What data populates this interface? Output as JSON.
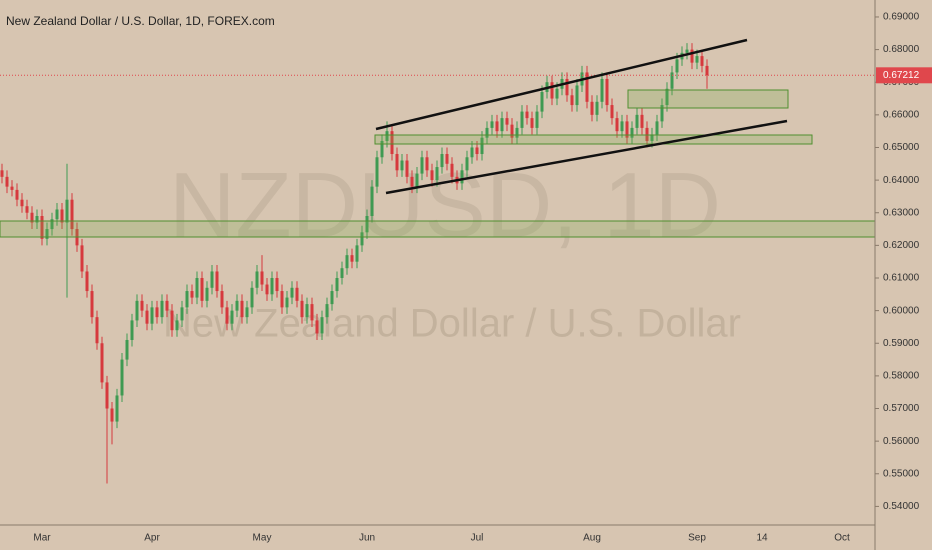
{
  "chart_data": {
    "type": "candlestick",
    "title": "New Zealand Dollar / U.S. Dollar, 1D, FOREX.com",
    "watermark": "NZDUSD, 1D",
    "watermark_subtitle": "New Zealand Dollar / U.S. Dollar",
    "last_price": 0.67212,
    "up_color": "#3f9a52",
    "down_color": "#d6393d",
    "background": "#d7c5b1",
    "last_price_color": "#e0474c",
    "ylim": [
      0.5343,
      0.6952
    ],
    "yticks": [
      {
        "value": 0.54,
        "label": "0.54000"
      },
      {
        "value": 0.55,
        "label": "0.55000"
      },
      {
        "value": 0.56,
        "label": "0.56000"
      },
      {
        "value": 0.57,
        "label": "0.57000"
      },
      {
        "value": 0.58,
        "label": "0.58000"
      },
      {
        "value": 0.59,
        "label": "0.59000"
      },
      {
        "value": 0.6,
        "label": "0.60000"
      },
      {
        "value": 0.61,
        "label": "0.61000"
      },
      {
        "value": 0.62,
        "label": "0.62000"
      },
      {
        "value": 0.63,
        "label": "0.63000"
      },
      {
        "value": 0.64,
        "label": "0.64000"
      },
      {
        "value": 0.65,
        "label": "0.65000"
      },
      {
        "value": 0.66,
        "label": "0.66000"
      },
      {
        "value": 0.67,
        "label": "0.67000"
      },
      {
        "value": 0.68,
        "label": "0.68000"
      },
      {
        "value": 0.69,
        "label": "0.69000"
      }
    ],
    "categories": [
      null,
      null,
      null,
      null,
      null,
      null,
      null,
      null,
      "Mar",
      null,
      null,
      null,
      null,
      null,
      null,
      null,
      null,
      null,
      null,
      null,
      null,
      null,
      null,
      null,
      null,
      null,
      null,
      null,
      null,
      null,
      "Apr",
      null,
      null,
      null,
      null,
      null,
      null,
      null,
      null,
      null,
      null,
      null,
      null,
      null,
      null,
      null,
      null,
      null,
      null,
      null,
      null,
      null,
      "May",
      null,
      null,
      null,
      null,
      null,
      null,
      null,
      null,
      null,
      null,
      null,
      null,
      null,
      null,
      null,
      null,
      null,
      null,
      null,
      null,
      "Jun",
      null,
      null,
      null,
      null,
      null,
      null,
      null,
      null,
      null,
      null,
      null,
      null,
      null,
      null,
      null,
      null,
      null,
      null,
      null,
      null,
      null,
      "Jul",
      null,
      null,
      null,
      null,
      null,
      null,
      null,
      null,
      null,
      null,
      null,
      null,
      null,
      null,
      null,
      null,
      null,
      null,
      null,
      null,
      null,
      null,
      "Aug",
      null,
      null,
      null,
      null,
      null,
      null,
      null,
      null,
      null,
      null,
      null,
      null,
      null,
      null,
      null,
      null,
      null,
      null,
      null,
      null,
      "Sep",
      null,
      null,
      null,
      null,
      null,
      null,
      null,
      null,
      null,
      null,
      null,
      null,
      "14",
      null,
      null,
      null,
      null,
      null,
      null,
      null,
      null,
      null,
      null,
      null,
      null,
      null,
      null,
      null,
      "Oct",
      null,
      null,
      null,
      null,
      null
    ],
    "open": [
      0.643,
      0.641,
      0.638,
      0.637,
      0.634,
      0.632,
      0.63,
      0.627,
      0.629,
      0.622,
      0.625,
      0.628,
      0.631,
      0.627,
      0.634,
      0.625,
      0.62,
      0.612,
      0.606,
      0.598,
      0.59,
      0.578,
      0.57,
      0.566,
      0.574,
      0.585,
      0.591,
      0.597,
      0.603,
      0.6,
      0.596,
      0.601,
      0.598,
      0.603,
      0.6,
      0.594,
      0.597,
      0.601,
      0.606,
      0.604,
      0.61,
      0.603,
      0.607,
      0.612,
      0.606,
      0.601,
      0.596,
      0.6,
      0.603,
      0.598,
      0.601,
      0.607,
      0.612,
      0.608,
      0.605,
      0.61,
      0.606,
      0.601,
      0.604,
      0.607,
      0.603,
      0.598,
      0.602,
      0.597,
      0.593,
      0.598,
      0.602,
      0.606,
      0.61,
      0.613,
      0.617,
      0.615,
      0.62,
      0.624,
      0.629,
      0.638,
      0.647,
      0.652,
      0.655,
      0.648,
      0.643,
      0.646,
      0.641,
      0.638,
      0.642,
      0.647,
      0.643,
      0.64,
      0.644,
      0.648,
      0.645,
      0.641,
      0.639,
      0.643,
      0.647,
      0.65,
      0.648,
      0.653,
      0.656,
      0.658,
      0.655,
      0.659,
      0.657,
      0.653,
      0.656,
      0.661,
      0.659,
      0.656,
      0.661,
      0.667,
      0.67,
      0.665,
      0.668,
      0.671,
      0.666,
      0.663,
      0.669,
      0.673,
      0.664,
      0.66,
      0.664,
      0.671,
      0.663,
      0.659,
      0.655,
      0.658,
      0.653,
      0.656,
      0.66,
      0.656,
      0.652,
      0.654,
      0.658,
      0.663,
      0.668,
      0.673,
      0.677,
      0.679,
      0.68,
      0.676,
      0.678,
      0.675,
      null,
      null,
      null,
      null,
      null,
      null,
      null,
      null,
      null,
      null,
      null,
      null,
      null,
      null,
      null,
      null,
      null,
      null,
      null,
      null,
      null,
      null,
      null,
      null,
      null,
      null,
      null,
      null,
      null,
      null,
      null,
      null
    ],
    "high": [
      0.645,
      0.643,
      0.64,
      0.639,
      0.636,
      0.634,
      0.632,
      0.631,
      0.631,
      0.627,
      0.63,
      0.633,
      0.633,
      0.645,
      0.636,
      0.627,
      0.622,
      0.614,
      0.608,
      0.6,
      0.592,
      0.58,
      0.572,
      0.576,
      0.587,
      0.593,
      0.599,
      0.605,
      0.605,
      0.602,
      0.603,
      0.603,
      0.605,
      0.605,
      0.602,
      0.599,
      0.603,
      0.608,
      0.608,
      0.612,
      0.612,
      0.609,
      0.614,
      0.614,
      0.608,
      0.603,
      0.602,
      0.605,
      0.605,
      0.603,
      0.609,
      0.614,
      0.617,
      0.61,
      0.612,
      0.612,
      0.608,
      0.606,
      0.609,
      0.609,
      0.605,
      0.604,
      0.604,
      0.599,
      0.6,
      0.604,
      0.608,
      0.612,
      0.615,
      0.619,
      0.619,
      0.622,
      0.626,
      0.631,
      0.64,
      0.649,
      0.654,
      0.658,
      0.657,
      0.65,
      0.648,
      0.648,
      0.643,
      0.644,
      0.649,
      0.649,
      0.645,
      0.646,
      0.65,
      0.65,
      0.647,
      0.643,
      0.645,
      0.649,
      0.652,
      0.652,
      0.655,
      0.658,
      0.66,
      0.66,
      0.661,
      0.661,
      0.659,
      0.658,
      0.663,
      0.663,
      0.661,
      0.663,
      0.669,
      0.672,
      0.672,
      0.67,
      0.673,
      0.673,
      0.668,
      0.671,
      0.675,
      0.675,
      0.666,
      0.666,
      0.673,
      0.673,
      0.665,
      0.661,
      0.66,
      0.66,
      0.658,
      0.662,
      0.662,
      0.658,
      0.656,
      0.66,
      0.665,
      0.67,
      0.675,
      0.679,
      0.681,
      0.682,
      0.682,
      0.68,
      0.68,
      0.677,
      null,
      null,
      null,
      null,
      null,
      null,
      null,
      null,
      null,
      null,
      null,
      null,
      null,
      null,
      null,
      null,
      null,
      null,
      null,
      null,
      null,
      null,
      null,
      null,
      null,
      null,
      null,
      null,
      null,
      null,
      null,
      null
    ],
    "low": [
      0.639,
      0.636,
      0.635,
      0.632,
      0.63,
      0.628,
      0.625,
      0.625,
      0.62,
      0.62,
      0.623,
      0.626,
      0.625,
      0.604,
      0.623,
      0.618,
      0.61,
      0.604,
      0.596,
      0.588,
      0.576,
      0.547,
      0.559,
      0.564,
      0.572,
      0.583,
      0.589,
      0.595,
      0.598,
      0.594,
      0.594,
      0.596,
      0.596,
      0.598,
      0.592,
      0.592,
      0.595,
      0.599,
      0.602,
      0.602,
      0.601,
      0.601,
      0.605,
      0.604,
      0.599,
      0.594,
      0.594,
      0.598,
      0.596,
      0.596,
      0.599,
      0.605,
      0.606,
      0.603,
      0.603,
      0.604,
      0.599,
      0.599,
      0.602,
      0.601,
      0.596,
      0.596,
      0.595,
      0.591,
      0.591,
      0.596,
      0.6,
      0.604,
      0.608,
      0.611,
      0.613,
      0.613,
      0.618,
      0.622,
      0.627,
      0.636,
      0.645,
      0.65,
      0.646,
      0.641,
      0.641,
      0.639,
      0.636,
      0.636,
      0.64,
      0.641,
      0.638,
      0.638,
      0.642,
      0.643,
      0.639,
      0.637,
      0.637,
      0.641,
      0.645,
      0.646,
      0.646,
      0.651,
      0.654,
      0.653,
      0.653,
      0.655,
      0.651,
      0.651,
      0.654,
      0.657,
      0.654,
      0.654,
      0.659,
      0.665,
      0.663,
      0.663,
      0.666,
      0.664,
      0.661,
      0.661,
      0.667,
      0.662,
      0.658,
      0.658,
      0.662,
      0.661,
      0.657,
      0.653,
      0.653,
      0.651,
      0.651,
      0.654,
      0.654,
      0.65,
      0.65,
      0.652,
      0.656,
      0.661,
      0.666,
      0.671,
      0.675,
      0.677,
      0.674,
      0.674,
      0.673,
      0.668,
      null,
      null,
      null,
      null,
      null,
      null,
      null,
      null,
      null,
      null,
      null,
      null,
      null,
      null,
      null,
      null,
      null,
      null,
      null,
      null,
      null,
      null,
      null,
      null,
      null,
      null,
      null,
      null,
      null,
      null,
      null,
      null
    ],
    "close": [
      0.641,
      0.638,
      0.637,
      0.634,
      0.632,
      0.63,
      0.627,
      0.629,
      0.622,
      0.625,
      0.628,
      0.631,
      0.627,
      0.634,
      0.625,
      0.62,
      0.612,
      0.606,
      0.598,
      0.59,
      0.578,
      0.57,
      0.566,
      0.574,
      0.585,
      0.591,
      0.597,
      0.603,
      0.6,
      0.596,
      0.601,
      0.598,
      0.603,
      0.6,
      0.594,
      0.597,
      0.601,
      0.606,
      0.604,
      0.61,
      0.603,
      0.607,
      0.612,
      0.606,
      0.601,
      0.596,
      0.6,
      0.603,
      0.598,
      0.601,
      0.607,
      0.612,
      0.608,
      0.605,
      0.61,
      0.606,
      0.601,
      0.604,
      0.607,
      0.603,
      0.598,
      0.602,
      0.597,
      0.593,
      0.598,
      0.602,
      0.606,
      0.61,
      0.613,
      0.617,
      0.615,
      0.62,
      0.624,
      0.629,
      0.638,
      0.647,
      0.652,
      0.655,
      0.648,
      0.643,
      0.646,
      0.641,
      0.638,
      0.642,
      0.647,
      0.643,
      0.64,
      0.644,
      0.648,
      0.645,
      0.641,
      0.639,
      0.643,
      0.647,
      0.65,
      0.648,
      0.653,
      0.656,
      0.658,
      0.655,
      0.659,
      0.657,
      0.653,
      0.656,
      0.661,
      0.659,
      0.656,
      0.661,
      0.667,
      0.67,
      0.665,
      0.668,
      0.671,
      0.666,
      0.663,
      0.669,
      0.673,
      0.664,
      0.66,
      0.664,
      0.671,
      0.663,
      0.659,
      0.655,
      0.658,
      0.653,
      0.656,
      0.66,
      0.656,
      0.652,
      0.654,
      0.658,
      0.663,
      0.668,
      0.673,
      0.677,
      0.679,
      0.68,
      0.676,
      0.678,
      0.675,
      0.67212,
      null,
      null,
      null,
      null,
      null,
      null,
      null,
      null,
      null,
      null,
      null,
      null,
      null,
      null,
      null,
      null,
      null,
      null,
      null,
      null,
      null,
      null,
      null,
      null,
      null,
      null,
      null,
      null,
      null,
      null,
      null,
      null
    ]
  }
}
